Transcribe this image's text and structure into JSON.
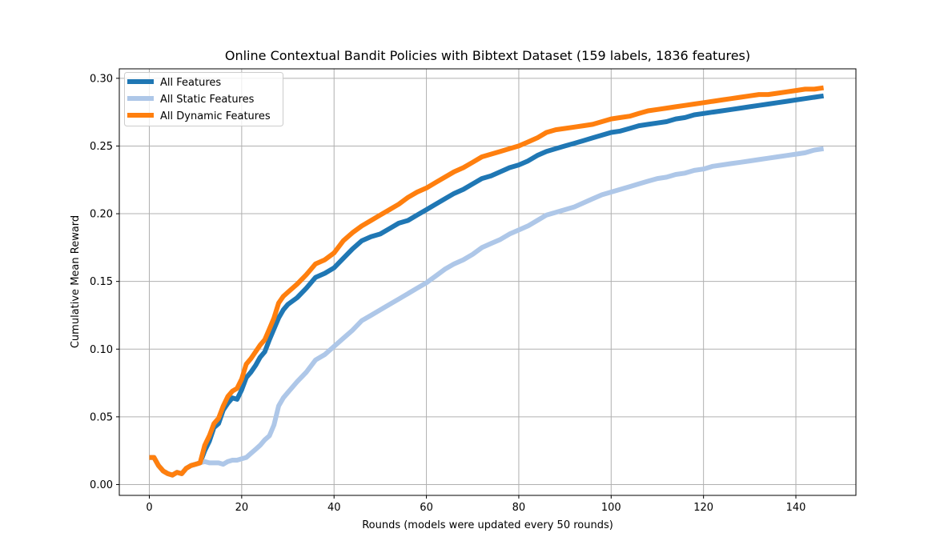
{
  "chart_data": {
    "type": "line",
    "title": "Online Contextual Bandit Policies with Bibtext Dataset (159 labels, 1836 features)",
    "xlabel": "Rounds (models were updated every 50 rounds)",
    "ylabel": "Cumulative Mean Reward",
    "xlim": [
      -6.5,
      153
    ],
    "ylim": [
      -0.008,
      0.307
    ],
    "xticks": [
      0,
      20,
      40,
      60,
      80,
      100,
      120,
      140
    ],
    "xtick_labels": [
      "0",
      "20",
      "40",
      "60",
      "80",
      "100",
      "120",
      "140"
    ],
    "yticks": [
      0.0,
      0.05,
      0.1,
      0.15,
      0.2,
      0.25,
      0.3
    ],
    "ytick_labels": [
      "0.00",
      "0.05",
      "0.10",
      "0.15",
      "0.20",
      "0.25",
      "0.30"
    ],
    "grid": true,
    "legend_position": "upper-left",
    "series": [
      {
        "name": "All Features",
        "color": "#1f77b4",
        "x": [
          0,
          1,
          2,
          3,
          4,
          5,
          6,
          7,
          8,
          9,
          10,
          11,
          12,
          13,
          14,
          15,
          16,
          17,
          18,
          19,
          20,
          21,
          22,
          23,
          24,
          25,
          26,
          27,
          28,
          29,
          30,
          32,
          34,
          36,
          38,
          40,
          42,
          44,
          46,
          48,
          50,
          52,
          54,
          56,
          58,
          60,
          62,
          64,
          66,
          68,
          70,
          72,
          74,
          76,
          78,
          80,
          82,
          84,
          86,
          88,
          90,
          92,
          94,
          96,
          98,
          100,
          102,
          104,
          106,
          108,
          110,
          112,
          114,
          116,
          118,
          120,
          122,
          124,
          126,
          128,
          130,
          132,
          134,
          136,
          138,
          140,
          142,
          144,
          146
        ],
        "y": [
          0.02,
          0.02,
          0.014,
          0.01,
          0.008,
          0.007,
          0.009,
          0.008,
          0.012,
          0.014,
          0.015,
          0.016,
          0.025,
          0.032,
          0.042,
          0.045,
          0.055,
          0.06,
          0.064,
          0.063,
          0.07,
          0.079,
          0.083,
          0.088,
          0.094,
          0.098,
          0.107,
          0.115,
          0.123,
          0.129,
          0.133,
          0.138,
          0.145,
          0.153,
          0.156,
          0.16,
          0.167,
          0.174,
          0.18,
          0.183,
          0.185,
          0.189,
          0.193,
          0.195,
          0.199,
          0.203,
          0.207,
          0.211,
          0.215,
          0.218,
          0.222,
          0.226,
          0.228,
          0.231,
          0.234,
          0.236,
          0.239,
          0.243,
          0.246,
          0.248,
          0.25,
          0.252,
          0.254,
          0.256,
          0.258,
          0.26,
          0.261,
          0.263,
          0.265,
          0.266,
          0.267,
          0.268,
          0.27,
          0.271,
          0.273,
          0.274,
          0.275,
          0.276,
          0.277,
          0.278,
          0.279,
          0.28,
          0.281,
          0.282,
          0.283,
          0.284,
          0.285,
          0.286,
          0.287
        ]
      },
      {
        "name": "All Static Features",
        "color": "#aec7e8",
        "x": [
          0,
          1,
          2,
          3,
          4,
          5,
          6,
          7,
          8,
          9,
          10,
          11,
          12,
          13,
          14,
          15,
          16,
          17,
          18,
          19,
          20,
          21,
          22,
          23,
          24,
          25,
          26,
          27,
          28,
          29,
          30,
          32,
          34,
          36,
          38,
          40,
          42,
          44,
          46,
          48,
          50,
          52,
          54,
          56,
          58,
          60,
          62,
          64,
          66,
          68,
          70,
          72,
          74,
          76,
          78,
          80,
          82,
          84,
          86,
          88,
          90,
          92,
          94,
          96,
          98,
          100,
          102,
          104,
          106,
          108,
          110,
          112,
          114,
          116,
          118,
          120,
          122,
          124,
          126,
          128,
          130,
          132,
          134,
          136,
          138,
          140,
          142,
          144,
          146
        ],
        "y": [
          0.02,
          0.02,
          0.014,
          0.01,
          0.008,
          0.007,
          0.009,
          0.008,
          0.012,
          0.014,
          0.015,
          0.016,
          0.017,
          0.016,
          0.016,
          0.016,
          0.015,
          0.017,
          0.018,
          0.018,
          0.019,
          0.02,
          0.023,
          0.026,
          0.029,
          0.033,
          0.036,
          0.044,
          0.058,
          0.064,
          0.068,
          0.076,
          0.083,
          0.092,
          0.096,
          0.102,
          0.108,
          0.114,
          0.121,
          0.125,
          0.129,
          0.133,
          0.137,
          0.141,
          0.145,
          0.149,
          0.154,
          0.159,
          0.163,
          0.166,
          0.17,
          0.175,
          0.178,
          0.181,
          0.185,
          0.188,
          0.191,
          0.195,
          0.199,
          0.201,
          0.203,
          0.205,
          0.208,
          0.211,
          0.214,
          0.216,
          0.218,
          0.22,
          0.222,
          0.224,
          0.226,
          0.227,
          0.229,
          0.23,
          0.232,
          0.233,
          0.235,
          0.236,
          0.237,
          0.238,
          0.239,
          0.24,
          0.241,
          0.242,
          0.243,
          0.244,
          0.245,
          0.247,
          0.248
        ]
      },
      {
        "name": "All Dynamic Features",
        "color": "#ff7f0e",
        "x": [
          0,
          1,
          2,
          3,
          4,
          5,
          6,
          7,
          8,
          9,
          10,
          11,
          12,
          13,
          14,
          15,
          16,
          17,
          18,
          19,
          20,
          21,
          22,
          23,
          24,
          25,
          26,
          27,
          28,
          29,
          30,
          32,
          34,
          36,
          38,
          40,
          42,
          44,
          46,
          48,
          50,
          52,
          54,
          56,
          58,
          60,
          62,
          64,
          66,
          68,
          70,
          72,
          74,
          76,
          78,
          80,
          82,
          84,
          86,
          88,
          90,
          92,
          94,
          96,
          98,
          100,
          102,
          104,
          106,
          108,
          110,
          112,
          114,
          116,
          118,
          120,
          122,
          124,
          126,
          128,
          130,
          132,
          134,
          136,
          138,
          140,
          142,
          144,
          146
        ],
        "y": [
          0.02,
          0.02,
          0.014,
          0.01,
          0.008,
          0.007,
          0.009,
          0.008,
          0.012,
          0.014,
          0.015,
          0.016,
          0.029,
          0.036,
          0.045,
          0.049,
          0.058,
          0.065,
          0.069,
          0.071,
          0.078,
          0.089,
          0.093,
          0.098,
          0.103,
          0.107,
          0.115,
          0.123,
          0.134,
          0.139,
          0.142,
          0.148,
          0.155,
          0.163,
          0.166,
          0.171,
          0.18,
          0.186,
          0.191,
          0.195,
          0.199,
          0.203,
          0.207,
          0.212,
          0.216,
          0.219,
          0.223,
          0.227,
          0.231,
          0.234,
          0.238,
          0.242,
          0.244,
          0.246,
          0.248,
          0.25,
          0.253,
          0.256,
          0.26,
          0.262,
          0.263,
          0.264,
          0.265,
          0.266,
          0.268,
          0.27,
          0.271,
          0.272,
          0.274,
          0.276,
          0.277,
          0.278,
          0.279,
          0.28,
          0.281,
          0.282,
          0.283,
          0.284,
          0.285,
          0.286,
          0.287,
          0.288,
          0.288,
          0.289,
          0.29,
          0.291,
          0.292,
          0.292,
          0.293
        ]
      }
    ]
  }
}
